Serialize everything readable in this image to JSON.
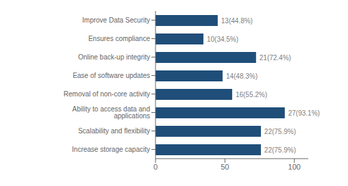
{
  "chart_data": {
    "type": "bar",
    "orientation": "horizontal",
    "categories": [
      "Increase storage capacity",
      "Scalability and flexibility",
      "Ability to access data and applications",
      "Removal of non-core activity",
      "Ease of software updates",
      "Online back-up integrity",
      "Ensures compliance",
      "Improve Data Security"
    ],
    "values": [
      75.9,
      75.9,
      93.1,
      55.2,
      48.3,
      72.4,
      34.5,
      44.8
    ],
    "value_labels": [
      "22(75.9%)",
      "22(75.9%)",
      "27(93.1%)",
      "16(55.2%)",
      "14(48.3%)",
      "21(72.4%)",
      "10(34.5%)",
      "13(44.8%)"
    ],
    "data_labels": true,
    "color": "#1F4E79",
    "xlim": [
      0,
      110
    ],
    "xticks": [
      0,
      50,
      100
    ],
    "grid": false
  }
}
